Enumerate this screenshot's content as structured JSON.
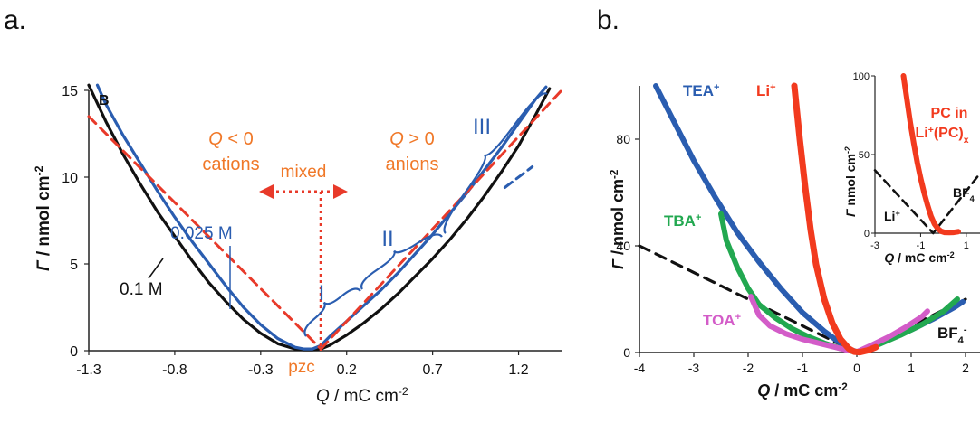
{
  "panels": [
    {
      "label": "a."
    },
    {
      "label": "b."
    }
  ],
  "chart_data": [
    {
      "type": "line",
      "xlabel": "Q / mC cm-2",
      "xlabel_parts": {
        "q": "Q",
        "unit": " / mC cm",
        "exp": "-2"
      },
      "ylabel": "Γ / nmol cm-2",
      "ylabel_parts": {
        "sym": "Γ",
        "unit": " / nmol cm",
        "exp": "-2"
      },
      "xlim": [
        -1.3,
        1.45
      ],
      "ylim": [
        0,
        15
      ],
      "xticks": [
        -1.3,
        -0.8,
        -0.3,
        0.2,
        0.7,
        1.2
      ],
      "xtick_labels": [
        "-1.3",
        "-0.8",
        "-0.3",
        "0.2",
        "0.7",
        "1.2"
      ],
      "yticks": [
        0,
        5,
        10,
        15
      ],
      "ytick_labels": [
        "0",
        "5",
        "10",
        "15"
      ],
      "grid": false,
      "colors": {
        "black": "#111111",
        "blue": "#2a5db0",
        "red": "#e83a2a",
        "orange": "#f07828"
      },
      "series": [
        {
          "name": "0.1 M",
          "color": "#111111",
          "x": [
            -1.3,
            -1.2,
            -1.1,
            -1.0,
            -0.9,
            -0.8,
            -0.7,
            -0.6,
            -0.5,
            -0.4,
            -0.3,
            -0.2,
            -0.1,
            -0.05,
            0.0,
            0.05,
            0.1,
            0.2,
            0.3,
            0.4,
            0.5,
            0.6,
            0.7,
            0.8,
            0.9,
            1.0,
            1.1,
            1.2,
            1.3,
            1.38
          ],
          "y": [
            15.3,
            13.2,
            11.3,
            9.6,
            8.0,
            6.6,
            5.2,
            3.9,
            2.8,
            1.8,
            1.0,
            0.4,
            0.1,
            0.05,
            0.05,
            0.1,
            0.3,
            0.9,
            1.6,
            2.4,
            3.3,
            4.3,
            5.3,
            6.4,
            7.6,
            8.9,
            10.3,
            11.8,
            13.6,
            15.1
          ]
        },
        {
          "name": "0.025 M",
          "color": "#2a5db0",
          "x": [
            -1.25,
            -1.2,
            -1.1,
            -1.0,
            -0.9,
            -0.8,
            -0.7,
            -0.6,
            -0.5,
            -0.4,
            -0.3,
            -0.2,
            -0.1,
            -0.05,
            0.0,
            0.05,
            0.1,
            0.2,
            0.3,
            0.4,
            0.5,
            0.6,
            0.7,
            0.8,
            0.9,
            1.0,
            1.1,
            1.2,
            1.3,
            1.36
          ],
          "y": [
            15.3,
            14.2,
            12.4,
            10.8,
            9.2,
            7.7,
            6.3,
            5.0,
            3.7,
            2.5,
            1.5,
            0.7,
            0.2,
            0.1,
            0.1,
            0.3,
            0.8,
            1.7,
            2.6,
            3.5,
            4.5,
            5.6,
            6.7,
            7.9,
            9.1,
            10.4,
            11.7,
            13.1,
            14.5,
            15.2
          ]
        },
        {
          "name": "fit-neg",
          "color": "#e83a2a",
          "dashed": true,
          "x": [
            -1.3,
            0.05
          ],
          "y": [
            13.5,
            0.1
          ]
        },
        {
          "name": "fit-pos",
          "color": "#e83a2a",
          "dashed": true,
          "x": [
            0.05,
            1.45
          ],
          "y": [
            0.1,
            15.0
          ]
        },
        {
          "name": "fit-blue",
          "color": "#2a5db0",
          "dashed": true,
          "x": [
            1.12,
            1.28
          ],
          "y": [
            9.4,
            10.6
          ]
        }
      ],
      "pzc": {
        "x": 0.05,
        "label": "pzc"
      },
      "annotations": {
        "b_label": "B",
        "q_neg_q": "Q",
        "q_neg_rest": " < 0",
        "cations": "cations",
        "q_pos_q": "Q",
        "q_pos_rest": " > 0",
        "anions": "anions",
        "mixed": "mixed",
        "conc_low": "0.025 M",
        "conc_high": "0.1 M",
        "region_1": "I",
        "region_2": "II",
        "region_3": "III"
      }
    },
    {
      "type": "line",
      "xlabel": "Q / mC cm-2",
      "xlabel_parts": {
        "q": "Q",
        "unit": " / mC cm",
        "exp": "-2"
      },
      "ylabel": "Γ / nmol cm-2",
      "ylabel_parts": {
        "sym": "Γ",
        "unit": " / nmol cm",
        "exp": "-2"
      },
      "xlim": [
        -4,
        2
      ],
      "ylim": [
        0,
        100
      ],
      "xticks": [
        -4,
        -3,
        -2,
        -1,
        0,
        1,
        2
      ],
      "xtick_labels": [
        "-4",
        "-3",
        "-2",
        "-1",
        "0",
        "1",
        "2"
      ],
      "yticks": [
        0,
        40,
        80
      ],
      "ytick_labels": [
        "0",
        "40",
        "80"
      ],
      "grid": false,
      "colors": {
        "blue": "#2a5db0",
        "green": "#22a850",
        "magenta": "#d35cc8",
        "red": "#f23a1e",
        "black": "#111111"
      },
      "series": [
        {
          "name": "TEA+",
          "label_main": "TEA",
          "label_sup": "+",
          "color": "#2a5db0",
          "x": [
            -3.7,
            -3.4,
            -3.0,
            -2.6,
            -2.2,
            -1.8,
            -1.4,
            -1.0,
            -0.6,
            -0.3,
            -0.1,
            0.0,
            0.3,
            0.6,
            1.0,
            1.4,
            1.8,
            1.95
          ],
          "y": [
            100,
            88,
            72,
            58,
            45,
            34,
            24,
            15,
            8,
            3.5,
            1.0,
            0.2,
            2.5,
            5.0,
            8.5,
            12.5,
            17.0,
            19.0
          ]
        },
        {
          "name": "TBA+",
          "label_main": "TBA",
          "label_sup": "+",
          "color": "#22a850",
          "x": [
            -2.5,
            -2.4,
            -2.2,
            -2.0,
            -1.8,
            -1.5,
            -1.2,
            -0.9,
            -0.6,
            -0.3,
            -0.1,
            0.0,
            0.4,
            0.8,
            1.2,
            1.6,
            1.85
          ],
          "y": [
            52,
            42,
            32,
            24,
            18,
            13,
            9,
            6,
            3.5,
            1.5,
            0.5,
            0.2,
            3.0,
            6.5,
            10.5,
            15.5,
            20.0
          ]
        },
        {
          "name": "TOA+",
          "label_main": "TOA",
          "label_sup": "+",
          "color": "#d35cc8",
          "x": [
            -1.95,
            -1.8,
            -1.6,
            -1.3,
            -1.0,
            -0.7,
            -0.4,
            -0.2,
            0.0,
            0.3,
            0.6,
            0.9,
            1.2,
            1.3
          ],
          "y": [
            21,
            14,
            10,
            7,
            5,
            3.5,
            2.0,
            1.0,
            0.2,
            3.0,
            6.0,
            9.5,
            13.5,
            15.5
          ]
        },
        {
          "name": "Li+",
          "label_main": "Li",
          "label_sup": "+",
          "color": "#f23a1e",
          "x": [
            -1.15,
            -1.05,
            -0.95,
            -0.85,
            -0.75,
            -0.6,
            -0.45,
            -0.3,
            -0.15,
            -0.05,
            0.05,
            0.2,
            0.35
          ],
          "y": [
            100,
            80,
            62,
            46,
            33,
            20,
            11,
            5,
            1.5,
            0.3,
            0.1,
            0.8,
            2.0
          ]
        },
        {
          "name": "fit",
          "color": "#111111",
          "dashed": true,
          "x": [
            -4,
            0,
            2
          ],
          "y": [
            40,
            0,
            20
          ]
        }
      ],
      "anion_label_main": "BF",
      "anion_label_sub": "4",
      "anion_label_sup": "-",
      "inset": {
        "xlim": [
          -3,
          1.6
        ],
        "ylim": [
          0,
          100
        ],
        "xticks": [
          -3,
          -1,
          1
        ],
        "xtick_labels": [
          "-3",
          "-1",
          "1"
        ],
        "yticks": [
          0,
          50,
          100
        ],
        "ytick_labels": [
          "0",
          "50",
          "100"
        ],
        "xlabel_parts": {
          "q": "Q",
          "unit": " / mC cm",
          "exp": "-2"
        },
        "ylabel_parts": {
          "sym": "Γ",
          "unit": " nmol cm",
          "exp": "-2"
        },
        "title_line1": "PC in",
        "title_line2_main": "Li",
        "title_line2_sup": "+",
        "title_line2_rest": "(PC)",
        "title_line2_sub": "x",
        "cation_label_main": "Li",
        "cation_label_sup": "+",
        "anion_label_main": "BF",
        "anion_label_sub": "4",
        "series": [
          {
            "name": "PC",
            "color": "#f23a1e",
            "x": [
              -1.75,
              -1.6,
              -1.45,
              -1.3,
              -1.15,
              -1.0,
              -0.85,
              -0.7,
              -0.55,
              -0.4,
              -0.25,
              -0.1,
              0.05,
              0.25,
              0.45,
              0.65
            ],
            "y": [
              100,
              85,
              70,
              57,
              45,
              35,
              26,
              18,
              11,
              6,
              3,
              1.2,
              0.5,
              0.4,
              0.5,
              1.0
            ]
          },
          {
            "name": "fit",
            "color": "#111111",
            "dashed": true,
            "x": [
              -3,
              -0.45,
              1.6
            ],
            "y": [
              40,
              0,
              38
            ]
          }
        ]
      }
    }
  ]
}
